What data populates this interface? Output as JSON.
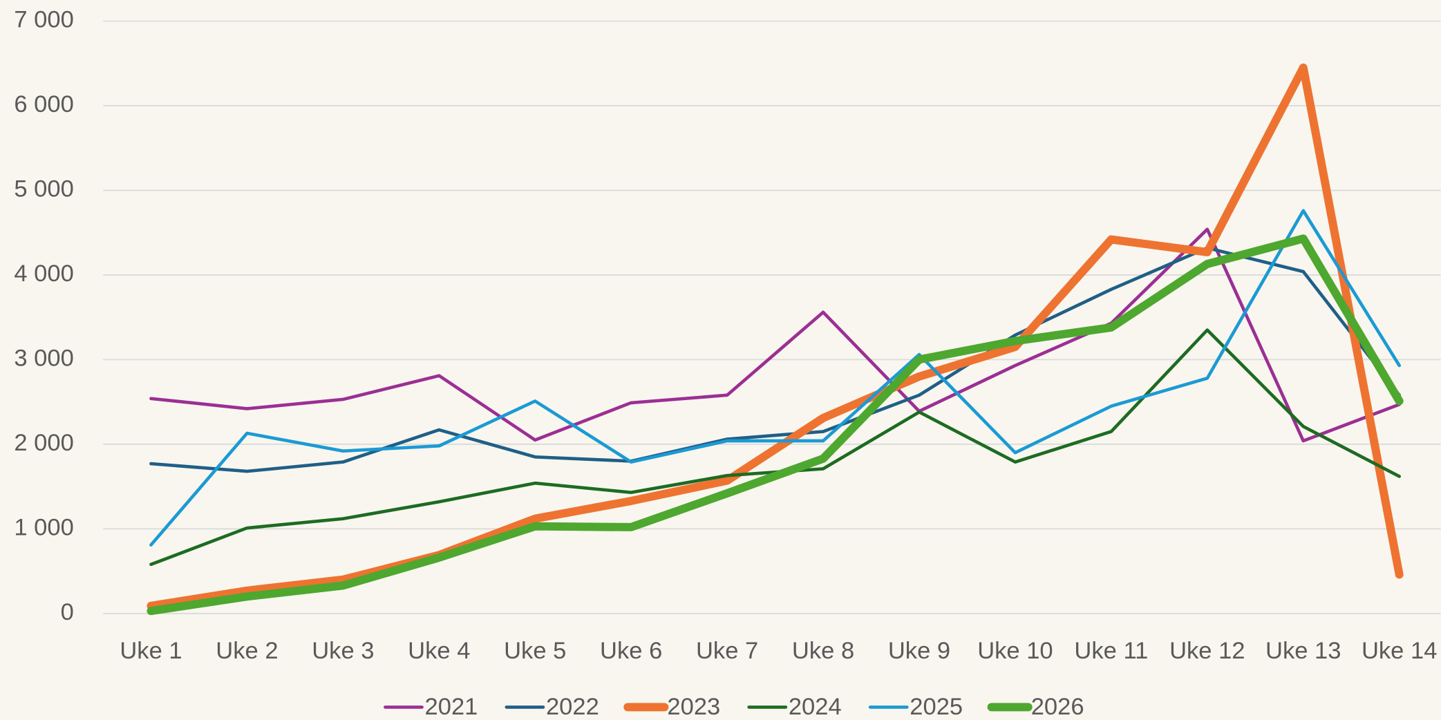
{
  "chart_data": {
    "type": "line",
    "categories": [
      "Uke 1",
      "Uke 2",
      "Uke 3",
      "Uke 4",
      "Uke 5",
      "Uke 6",
      "Uke 7",
      "Uke 8",
      "Uke 9",
      "Uke 10",
      "Uke 11",
      "Uke 12",
      "Uke 13",
      "Uke 14"
    ],
    "series": [
      {
        "name": "2021",
        "color": "#9b2f93",
        "line_width": 3.5,
        "values": [
          2540,
          2420,
          2530,
          2810,
          2050,
          2490,
          2580,
          3560,
          2390,
          2930,
          3430,
          4540,
          2040,
          2470
        ]
      },
      {
        "name": "2022",
        "color": "#1f5f86",
        "line_width": 3.5,
        "values": [
          1770,
          1680,
          1790,
          2170,
          1850,
          1800,
          2060,
          2150,
          2580,
          3290,
          3830,
          4320,
          4040,
          2580
        ]
      },
      {
        "name": "2023",
        "color": "#ee7331",
        "line_width": 9,
        "values": [
          90,
          270,
          400,
          690,
          1120,
          1330,
          1570,
          2310,
          2800,
          3150,
          4420,
          4270,
          6450,
          460
        ]
      },
      {
        "name": "2024",
        "color": "#1d6b22",
        "line_width": 3.5,
        "values": [
          580,
          1010,
          1120,
          1320,
          1540,
          1430,
          1630,
          1710,
          2380,
          1790,
          2150,
          3350,
          2210,
          1620
        ]
      },
      {
        "name": "2025",
        "color": "#1b9ad4",
        "line_width": 3.5,
        "values": [
          810,
          2130,
          1920,
          1980,
          2510,
          1790,
          2040,
          2040,
          3060,
          1900,
          2450,
          2780,
          4760,
          2930
        ]
      },
      {
        "name": "2026",
        "color": "#4ea72e",
        "line_width": 9,
        "values": [
          30,
          200,
          330,
          660,
          1030,
          1020,
          1420,
          1830,
          3000,
          3220,
          3380,
          4130,
          4430,
          2510
        ]
      }
    ],
    "ylim": [
      0,
      7000
    ],
    "yticks": [
      0,
      {
        "value": 1000,
        "label": "1 000"
      },
      {
        "value": 2000,
        "label": "2 000"
      },
      {
        "value": 3000,
        "label": "3 000"
      },
      {
        "value": 4000,
        "label": "4 000"
      },
      {
        "value": 5000,
        "label": "5 000"
      },
      {
        "value": 6000,
        "label": "6 000"
      },
      {
        "value": 7000,
        "label": "7 000"
      }
    ],
    "grid": true,
    "legend": "bottom"
  }
}
